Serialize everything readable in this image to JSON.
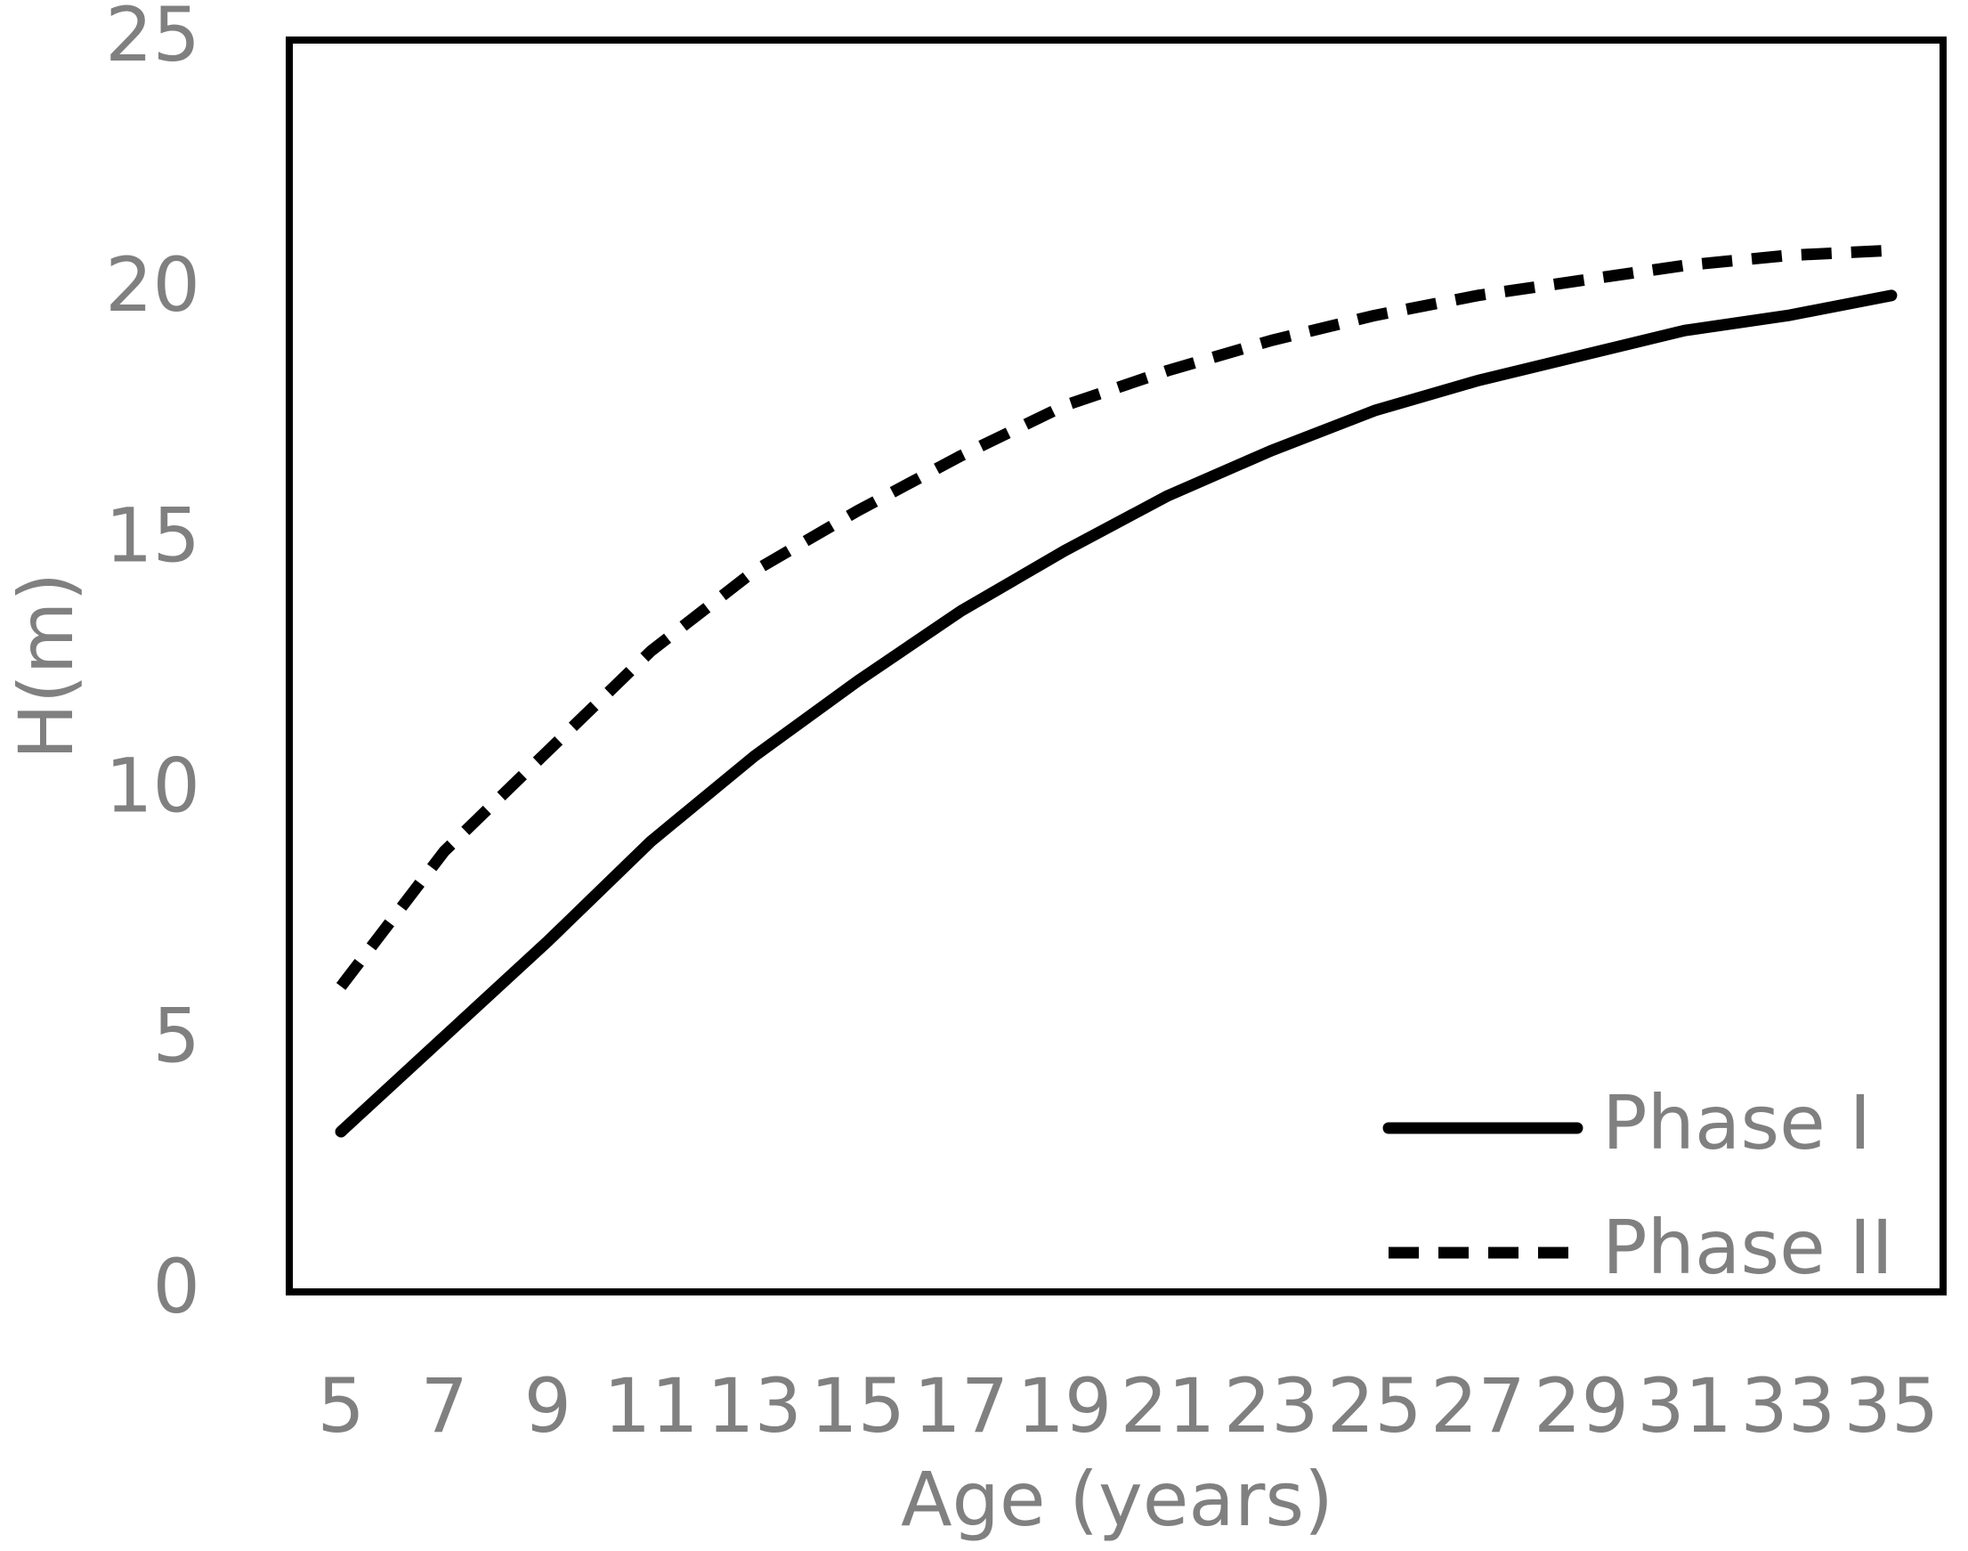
{
  "chart_data": {
    "type": "line",
    "x_label": "Age (years)",
    "y_label": "H(m)",
    "categories": [
      "5",
      "7",
      "9",
      "11",
      "13",
      "15",
      "17",
      "19",
      "21",
      "23",
      "25",
      "27",
      "29",
      "31",
      "33",
      "35"
    ],
    "series": [
      {
        "name": "Phase I",
        "color": "#000000",
        "dashed": false,
        "values": [
          3.2,
          5.1,
          7.0,
          9.0,
          10.7,
          12.2,
          13.6,
          14.8,
          15.9,
          16.8,
          17.6,
          18.2,
          18.7,
          19.2,
          19.5,
          19.9
        ]
      },
      {
        "name": "Phase II",
        "color": "#000000",
        "dashed": true,
        "values": [
          6.1,
          8.8,
          10.8,
          12.8,
          14.4,
          15.6,
          16.7,
          17.7,
          18.4,
          19.0,
          19.5,
          19.9,
          20.2,
          20.5,
          20.7,
          20.8
        ]
      }
    ],
    "ylim": [
      0,
      25
    ],
    "yticks": [
      0,
      5,
      10,
      15,
      20,
      25
    ],
    "grid": false,
    "legend": "lower right"
  }
}
